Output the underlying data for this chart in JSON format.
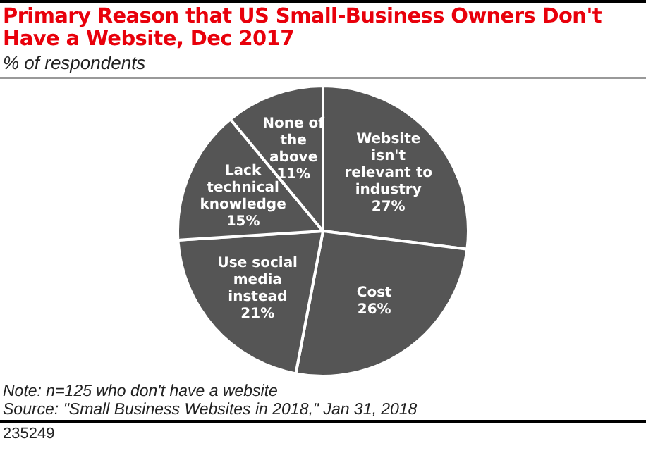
{
  "chart_data": {
    "type": "pie",
    "title": "Primary Reason that US Small-Business Owners Don't Have a Website, Dec 2017",
    "subtitle": "% of respondents",
    "categories": [
      "Website isn't relevant to industry",
      "Cost",
      "Use social media instead",
      "Lack technical knowledge",
      "None of the above"
    ],
    "values": [
      27,
      26,
      21,
      15,
      11
    ],
    "value_labels": [
      "27%",
      "26%",
      "21%",
      "15%",
      "11%"
    ],
    "colors": [
      "#555555",
      "#555555",
      "#555555",
      "#555555",
      "#555555"
    ],
    "legend": false,
    "annotations": [
      "Note: n=125 who don't have a website",
      "Source: \"Small Business Websites in 2018,\" Jan 31, 2018",
      "235249"
    ]
  }
}
